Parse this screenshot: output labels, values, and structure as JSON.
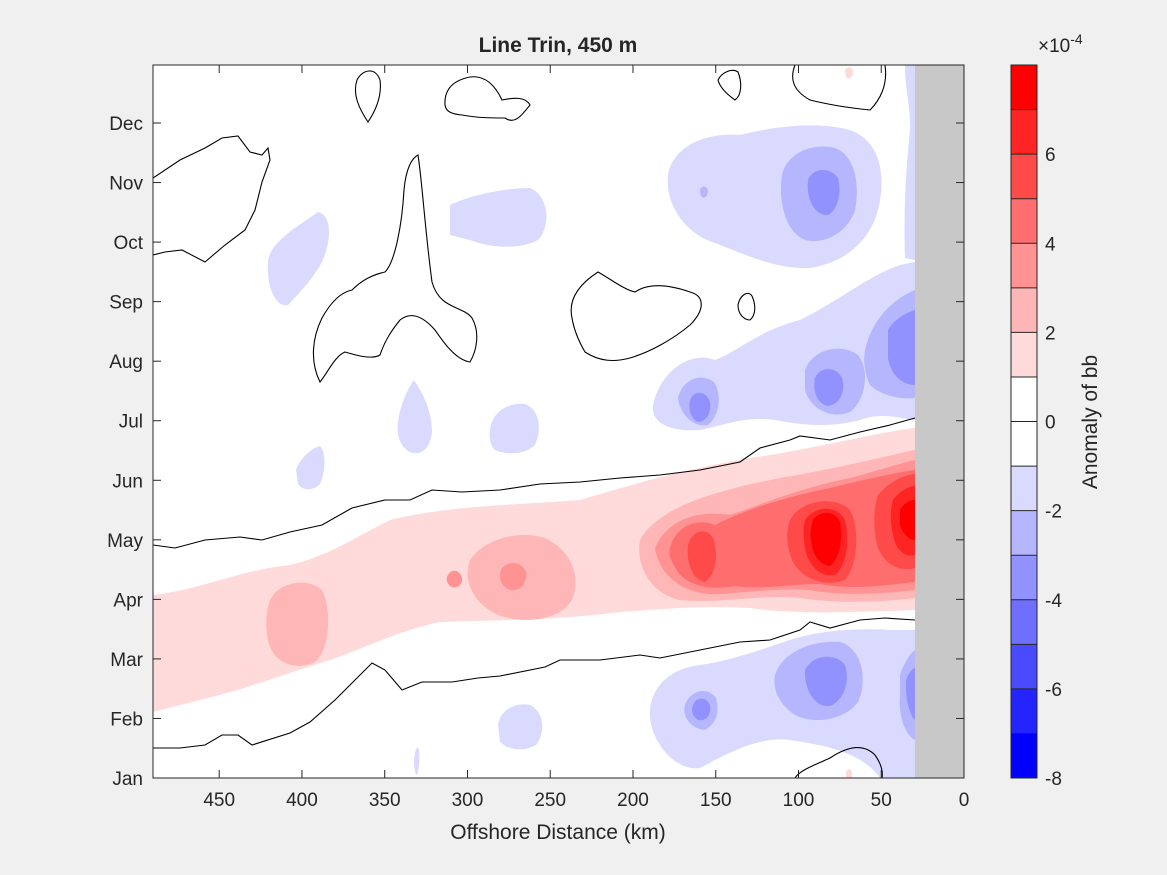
{
  "chart_data": {
    "type": "heatmap",
    "subtype": "filled-contour",
    "title": "Line Trin, 450 m",
    "xlabel": "Offshore Distance (km)",
    "ylabel": "",
    "xlim": [
      490,
      0
    ],
    "x_reversed": true,
    "x_ticks": [
      450,
      400,
      350,
      300,
      250,
      200,
      150,
      100,
      50,
      0
    ],
    "y_ticks": [
      "Jan",
      "Feb",
      "Mar",
      "Apr",
      "May",
      "Jun",
      "Jul",
      "Aug",
      "Sep",
      "Oct",
      "Nov",
      "Dec"
    ],
    "grid": false,
    "no_data_region": {
      "x_range": [
        0,
        30
      ],
      "color": "#c8c8c8"
    },
    "colorbar": {
      "label": "Anomaly of bb",
      "exponent_label": "×10",
      "exponent_power": "-4",
      "range": [
        -8,
        8
      ],
      "ticks": [
        "-8",
        "-6",
        "-4",
        "-2",
        "0",
        "2",
        "4",
        "6"
      ],
      "levels": [
        {
          "from": -8,
          "to": -7,
          "color": "#0000ff"
        },
        {
          "from": -7,
          "to": -6,
          "color": "#2424ff"
        },
        {
          "from": -6,
          "to": -5,
          "color": "#4a4aff"
        },
        {
          "from": -5,
          "to": -4,
          "color": "#6e6eff"
        },
        {
          "from": -4,
          "to": -3,
          "color": "#9292ff"
        },
        {
          "from": -3,
          "to": -2,
          "color": "#b6b6ff"
        },
        {
          "from": -2,
          "to": -1,
          "color": "#dadaff"
        },
        {
          "from": -1,
          "to": 0,
          "color": "#ffffff"
        },
        {
          "from": 0,
          "to": 1,
          "color": "#ffffff"
        },
        {
          "from": 1,
          "to": 2,
          "color": "#ffdada"
        },
        {
          "from": 2,
          "to": 3,
          "color": "#ffb6b6"
        },
        {
          "from": 3,
          "to": 4,
          "color": "#ff9292"
        },
        {
          "from": 4,
          "to": 5,
          "color": "#ff6e6e"
        },
        {
          "from": 5,
          "to": 6,
          "color": "#ff4a4a"
        },
        {
          "from": 6,
          "to": 7,
          "color": "#ff2424"
        },
        {
          "from": 7,
          "to": 8,
          "color": "#ff0000"
        }
      ]
    },
    "features": [
      {
        "kind": "positive",
        "x": 85,
        "y": "May",
        "peak": 8
      },
      {
        "kind": "positive",
        "x": 35,
        "y": "May",
        "peak": 7
      },
      {
        "kind": "positive",
        "x": 160,
        "y": "May",
        "peak": 5
      },
      {
        "kind": "positive",
        "x": 270,
        "y": "Apr",
        "peak": 3
      },
      {
        "kind": "positive",
        "x": 400,
        "y": "Apr",
        "peak": 2
      },
      {
        "kind": "negative",
        "x": 85,
        "y": "Nov",
        "peak": -4
      },
      {
        "kind": "negative",
        "x": 80,
        "y": "Mar",
        "peak": -4
      },
      {
        "kind": "negative",
        "x": 40,
        "y": "Aug",
        "peak": -4
      },
      {
        "kind": "negative",
        "x": 155,
        "y": "Jul",
        "peak": -3
      }
    ]
  }
}
